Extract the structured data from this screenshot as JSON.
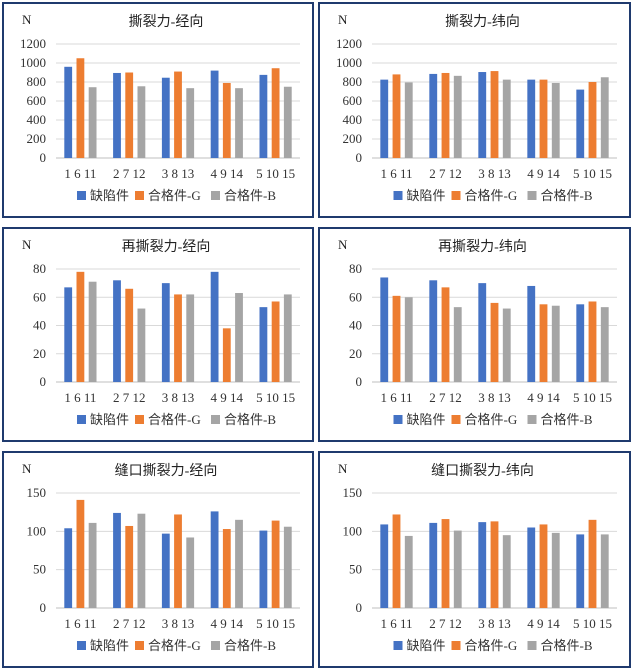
{
  "legend": [
    "缺陷件",
    "合格件-G",
    "合格件-B"
  ],
  "colors": {
    "defect": "#4472C4",
    "goodG": "#ED7D31",
    "goodB": "#A5A5A5"
  },
  "chart_data": [
    {
      "type": "bar",
      "title": "撕裂力-经向",
      "unit": "N",
      "categories": [
        "1 6 11",
        "2 7 12",
        "3 8 13",
        "4 9 14",
        "5 10 15"
      ],
      "ylim": [
        0,
        1200
      ],
      "yticks": [
        0,
        200,
        400,
        600,
        800,
        1000,
        1200
      ],
      "series": [
        {
          "name": "缺陷件",
          "values": [
            960,
            895,
            845,
            920,
            875
          ]
        },
        {
          "name": "合格件-G",
          "values": [
            1050,
            900,
            910,
            790,
            945
          ]
        },
        {
          "name": "合格件-B",
          "values": [
            745,
            755,
            735,
            735,
            750
          ]
        }
      ]
    },
    {
      "type": "bar",
      "title": "撕裂力-纬向",
      "unit": "N",
      "categories": [
        "1 6 11",
        "2 7 12",
        "3 8 13",
        "4 9 14",
        "5 10 15"
      ],
      "ylim": [
        0,
        1200
      ],
      "yticks": [
        0,
        200,
        400,
        600,
        800,
        1000,
        1200
      ],
      "series": [
        {
          "name": "缺陷件",
          "values": [
            825,
            885,
            905,
            825,
            720
          ]
        },
        {
          "name": "合格件-G",
          "values": [
            880,
            895,
            915,
            825,
            800
          ]
        },
        {
          "name": "合格件-B",
          "values": [
            795,
            865,
            825,
            790,
            850
          ]
        }
      ]
    },
    {
      "type": "bar",
      "title": "再撕裂力-经向",
      "unit": "N",
      "categories": [
        "1 6 11",
        "2 7 12",
        "3 8 13",
        "4 9 14",
        "5 10 15"
      ],
      "ylim": [
        0,
        80
      ],
      "yticks": [
        0,
        20,
        40,
        60,
        80
      ],
      "series": [
        {
          "name": "缺陷件",
          "values": [
            67,
            72,
            70,
            78,
            53
          ]
        },
        {
          "name": "合格件-G",
          "values": [
            78,
            66,
            62,
            38,
            57
          ]
        },
        {
          "name": "合格件-B",
          "values": [
            71,
            52,
            62,
            63,
            62
          ]
        }
      ]
    },
    {
      "type": "bar",
      "title": "再撕裂力-纬向",
      "unit": "N",
      "categories": [
        "1 6 11",
        "2 7 12",
        "3 8 13",
        "4 9 14",
        "5 10 15"
      ],
      "ylim": [
        0,
        80
      ],
      "yticks": [
        0,
        20,
        40,
        60,
        80
      ],
      "series": [
        {
          "name": "缺陷件",
          "values": [
            74,
            72,
            70,
            68,
            55
          ]
        },
        {
          "name": "合格件-G",
          "values": [
            61,
            67,
            56,
            55,
            57
          ]
        },
        {
          "name": "合格件-B",
          "values": [
            60,
            53,
            52,
            54,
            53
          ]
        }
      ]
    },
    {
      "type": "bar",
      "title": "缝口撕裂力-经向",
      "unit": "N",
      "categories": [
        "1 6 11",
        "2 7 12",
        "3 8 13",
        "4 9 14",
        "5 10 15"
      ],
      "ylim": [
        0,
        150
      ],
      "yticks": [
        0,
        50,
        100,
        150
      ],
      "series": [
        {
          "name": "缺陷件",
          "values": [
            104,
            124,
            97,
            126,
            101
          ]
        },
        {
          "name": "合格件-G",
          "values": [
            141,
            107,
            122,
            103,
            114
          ]
        },
        {
          "name": "合格件-B",
          "values": [
            111,
            123,
            92,
            115,
            106
          ]
        }
      ]
    },
    {
      "type": "bar",
      "title": "缝口撕裂力-纬向",
      "unit": "N",
      "categories": [
        "1 6 11",
        "2 7 12",
        "3 8 13",
        "4 9 14",
        "5 10 15"
      ],
      "ylim": [
        0,
        150
      ],
      "yticks": [
        0,
        50,
        100,
        150
      ],
      "series": [
        {
          "name": "缺陷件",
          "values": [
            109,
            111,
            112,
            105,
            96
          ]
        },
        {
          "name": "合格件-G",
          "values": [
            122,
            116,
            113,
            109,
            115
          ]
        },
        {
          "name": "合格件-B",
          "values": [
            94,
            101,
            95,
            98,
            96
          ]
        }
      ]
    }
  ]
}
